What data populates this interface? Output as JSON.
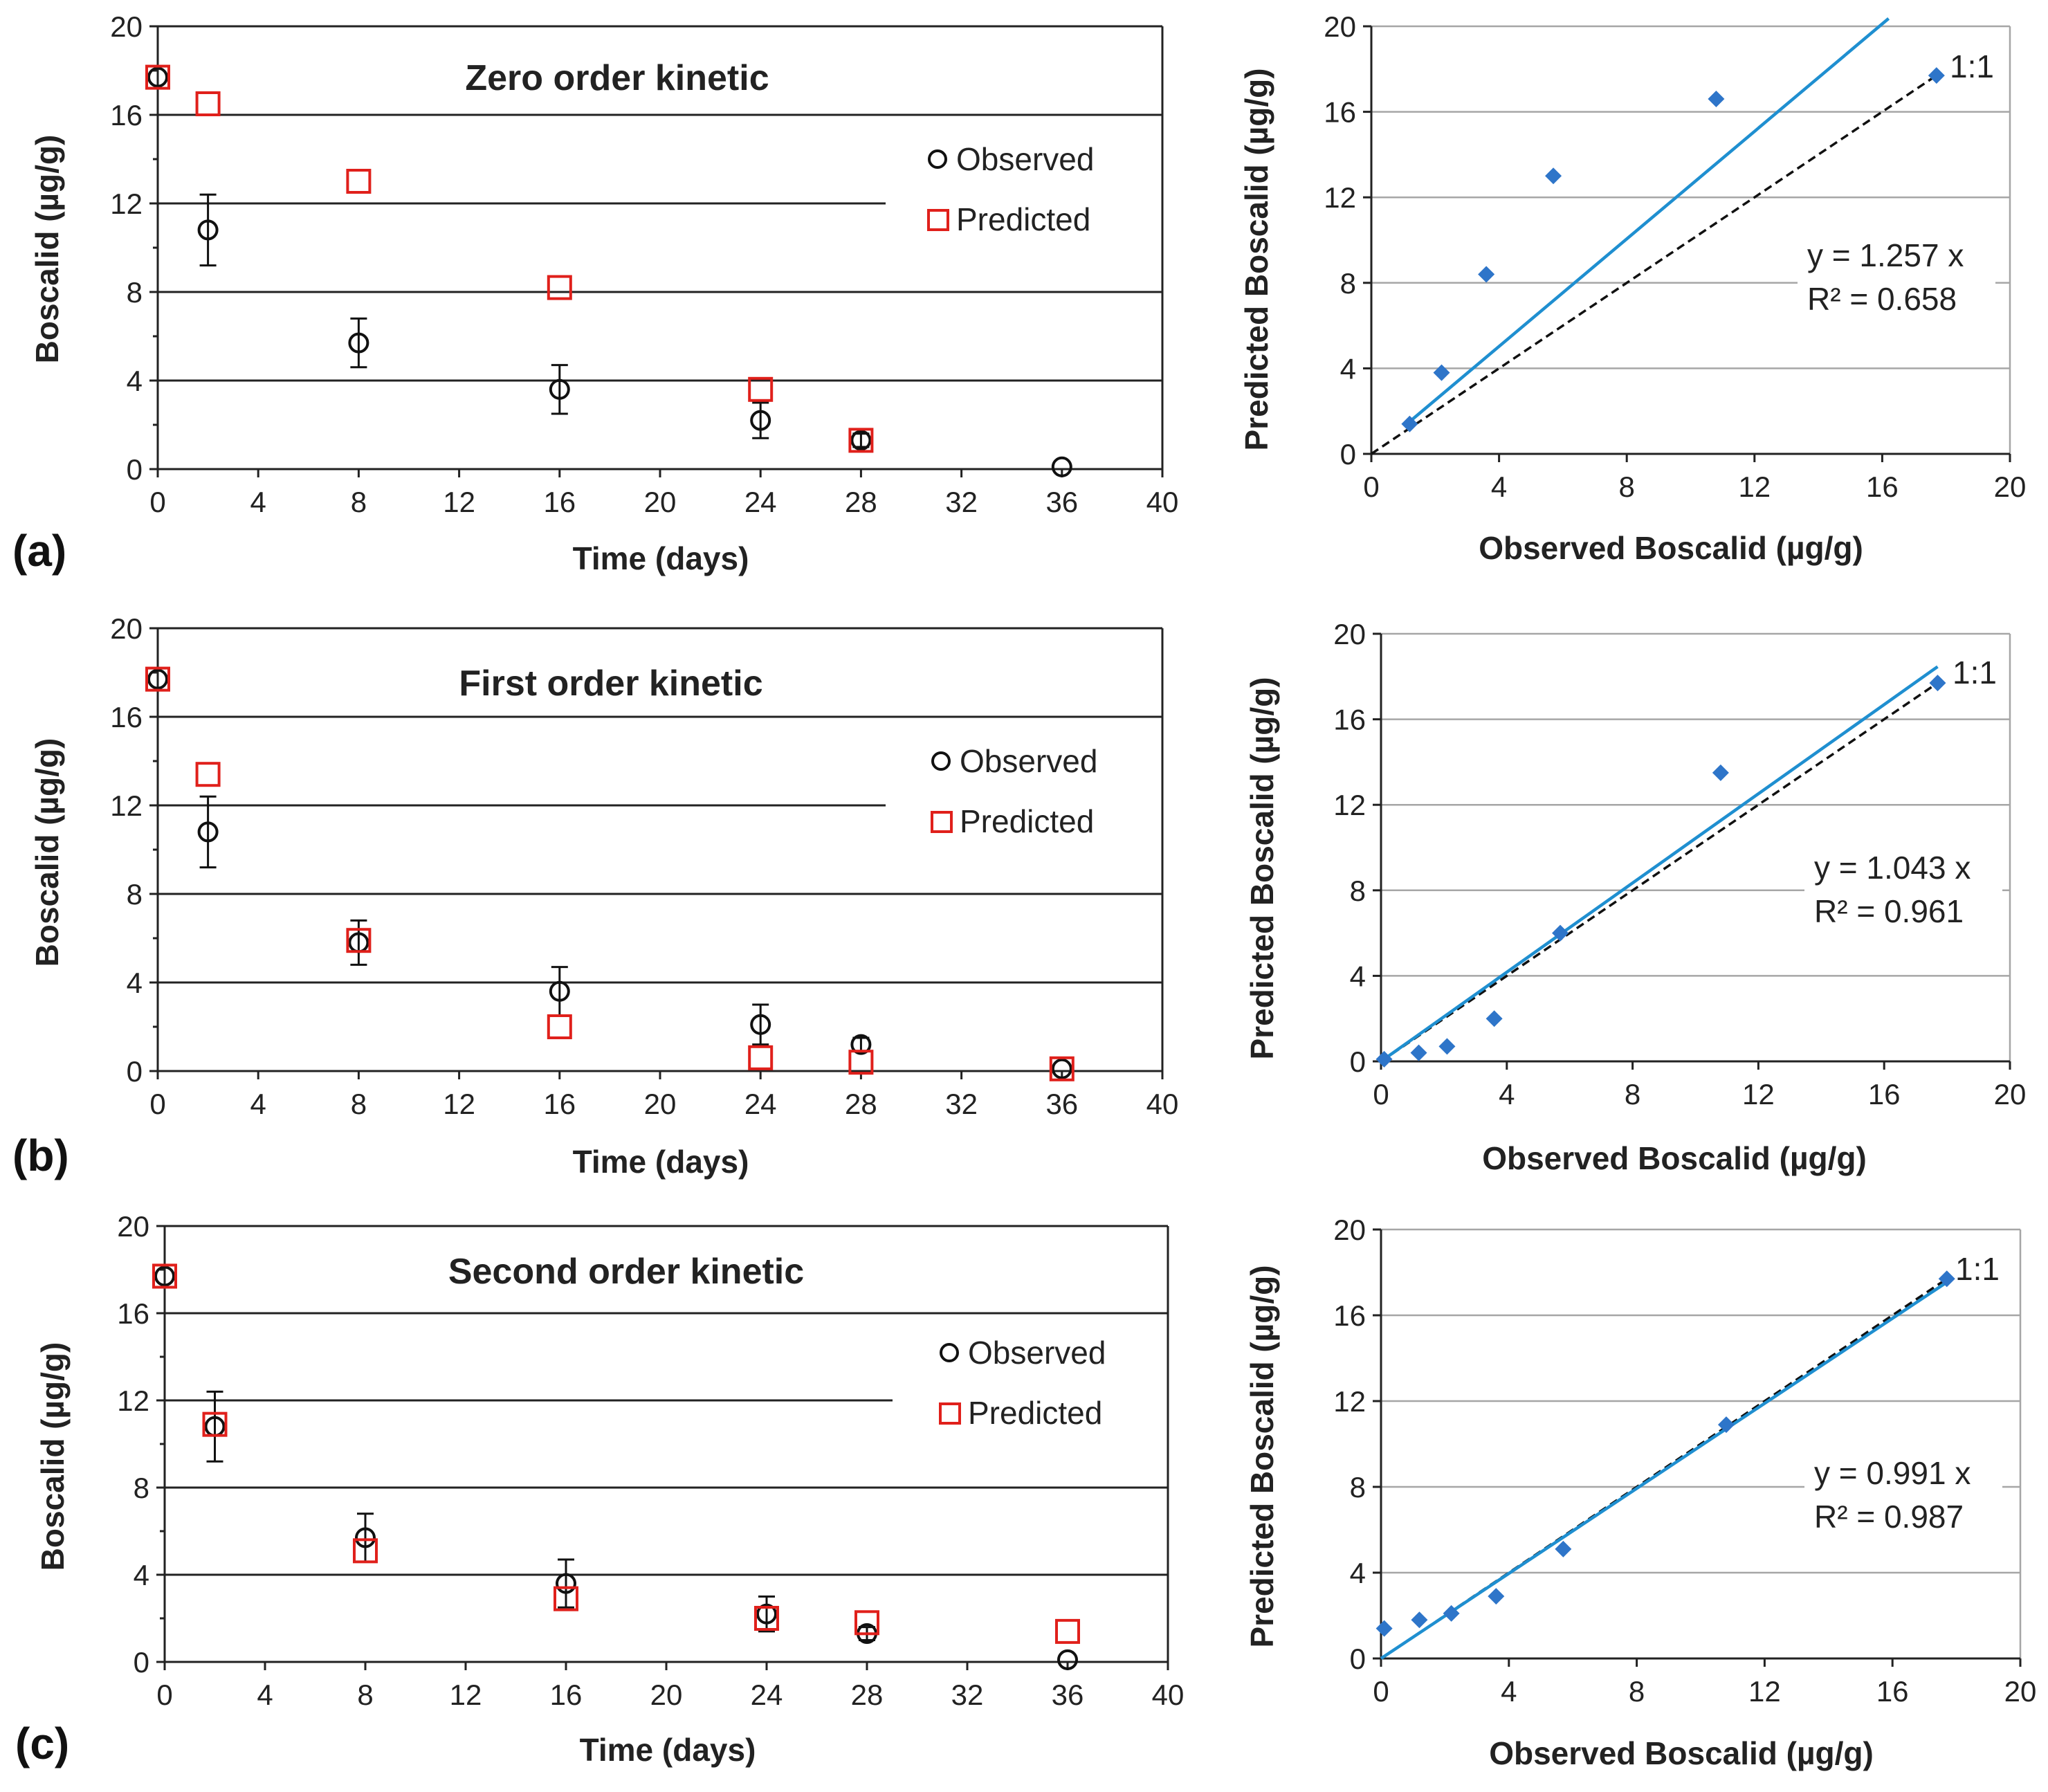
{
  "panels": [
    {
      "label": "(a)",
      "kinetic": {
        "title": "Zero order kinetic",
        "xlabel": "Time (days)",
        "ylabel": "Boscalid (µg/g)",
        "legend_observed": "Observed",
        "legend_predicted": "Predicted"
      },
      "scatter": {
        "xlabel": "Observed Boscalid (µg/g)",
        "ylabel": "Predicted Boscalid  (µg/g)",
        "equation": "y = 1.257 x",
        "r2": "R² = 0.658",
        "one_to_one": "1:1"
      }
    },
    {
      "label": "(b)",
      "kinetic": {
        "title": "First order kinetic",
        "xlabel": "Time (days)",
        "ylabel": "Boscalid (µg/g)",
        "legend_observed": "Observed",
        "legend_predicted": "Predicted"
      },
      "scatter": {
        "xlabel": "Observed Boscalid  (µg/g)",
        "ylabel": "Predicted Boscalid (µg/g)",
        "equation": "y = 1.043 x",
        "r2": "R² = 0.961",
        "one_to_one": "1:1"
      }
    },
    {
      "label": "(c)",
      "kinetic": {
        "title": "Second order kinetic",
        "xlabel": "Time (days)",
        "ylabel": "Boscalid (µg/g)",
        "legend_observed": "Observed",
        "legend_predicted": "Predicted"
      },
      "scatter": {
        "xlabel": "Observed Boscalid (µg/g)",
        "ylabel": "Predicted Boscalid (µg/g)",
        "equation": "y = 0.991 x",
        "r2": "R² = 0.987",
        "one_to_one": "1:1"
      }
    }
  ],
  "chart_data": [
    {
      "type": "scatter",
      "id": "a-kinetic",
      "title": "Zero order kinetic",
      "xlabel": "Time (days)",
      "ylabel": "Boscalid (µg/g)",
      "xlim": [
        0,
        40
      ],
      "ylim": [
        0,
        20
      ],
      "xticks": [
        0,
        4,
        8,
        12,
        16,
        20,
        24,
        28,
        32,
        36,
        40
      ],
      "yticks": [
        0,
        4,
        8,
        12,
        16,
        20
      ],
      "series": [
        {
          "name": "Observed",
          "x": [
            0,
            2,
            8,
            16,
            24,
            28,
            36
          ],
          "y": [
            17.7,
            10.8,
            5.7,
            3.6,
            2.2,
            1.3,
            0.1
          ],
          "err": [
            0,
            1.6,
            1.1,
            1.1,
            0.8,
            0.3,
            0
          ]
        },
        {
          "name": "Predicted",
          "x": [
            0,
            2,
            8,
            16,
            24,
            28
          ],
          "y": [
            17.7,
            16.5,
            13.0,
            8.2,
            3.6,
            1.3
          ]
        }
      ]
    },
    {
      "type": "scatter",
      "id": "a-fit",
      "xlabel": "Observed Boscalid (µg/g)",
      "ylabel": "Predicted Boscalid  (µg/g)",
      "xlim": [
        0,
        20
      ],
      "ylim": [
        0,
        20
      ],
      "xticks": [
        0,
        4,
        8,
        12,
        16,
        20
      ],
      "yticks": [
        0,
        4,
        8,
        12,
        16,
        20
      ],
      "series": [
        {
          "name": "Points",
          "x": [
            1.2,
            2.2,
            3.6,
            5.7,
            10.8,
            17.7
          ],
          "y": [
            1.4,
            3.8,
            8.4,
            13.0,
            16.6,
            17.7
          ]
        }
      ],
      "fit_slope": 1.257,
      "fit_xmax": 16.2,
      "ref_xmax": 17.7,
      "equation": "y = 1.257 x",
      "r2": "R² = 0.658"
    },
    {
      "type": "scatter",
      "id": "b-kinetic",
      "title": "First order kinetic",
      "xlabel": "Time (days)",
      "ylabel": "Boscalid (µg/g)",
      "xlim": [
        0,
        40
      ],
      "ylim": [
        0,
        20
      ],
      "xticks": [
        0,
        4,
        8,
        12,
        16,
        20,
        24,
        28,
        32,
        36,
        40
      ],
      "yticks": [
        0,
        4,
        8,
        12,
        16,
        20
      ],
      "series": [
        {
          "name": "Observed",
          "x": [
            0,
            2,
            8,
            16,
            24,
            28,
            36
          ],
          "y": [
            17.7,
            10.8,
            5.8,
            3.6,
            2.1,
            1.2,
            0.1
          ],
          "err": [
            0,
            1.6,
            1.0,
            1.1,
            0.9,
            0.3,
            0
          ]
        },
        {
          "name": "Predicted",
          "x": [
            0,
            2,
            8,
            16,
            24,
            28,
            36
          ],
          "y": [
            17.7,
            13.4,
            5.9,
            2.0,
            0.6,
            0.4,
            0.1
          ]
        }
      ]
    },
    {
      "type": "scatter",
      "id": "b-fit",
      "xlabel": "Observed Boscalid  (µg/g)",
      "ylabel": "Predicted Boscalid (µg/g)",
      "xlim": [
        0,
        20
      ],
      "ylim": [
        0,
        20
      ],
      "xticks": [
        0,
        4,
        8,
        12,
        16,
        20
      ],
      "yticks": [
        0,
        4,
        8,
        12,
        16,
        20
      ],
      "series": [
        {
          "name": "Points",
          "x": [
            0.1,
            1.2,
            2.1,
            3.6,
            5.7,
            10.8,
            17.7
          ],
          "y": [
            0.1,
            0.4,
            0.7,
            2.0,
            6.0,
            13.5,
            17.7
          ]
        }
      ],
      "fit_slope": 1.043,
      "fit_xmax": 17.7,
      "ref_xmax": 17.7,
      "equation": "y = 1.043 x",
      "r2": "R² = 0.961"
    },
    {
      "type": "scatter",
      "id": "c-kinetic",
      "title": "Second order kinetic",
      "xlabel": "Time (days)",
      "ylabel": "Boscalid (µg/g)",
      "xlim": [
        0,
        40
      ],
      "ylim": [
        0,
        20
      ],
      "xticks": [
        0,
        4,
        8,
        12,
        16,
        20,
        24,
        28,
        32,
        36,
        40
      ],
      "yticks": [
        0,
        4,
        8,
        12,
        16,
        20
      ],
      "series": [
        {
          "name": "Observed",
          "x": [
            0,
            2,
            8,
            16,
            24,
            28,
            36
          ],
          "y": [
            17.7,
            10.8,
            5.7,
            3.6,
            2.2,
            1.3,
            0.1
          ],
          "err": [
            0,
            1.6,
            1.1,
            1.1,
            0.8,
            0.3,
            0
          ]
        },
        {
          "name": "Predicted",
          "x": [
            0,
            2,
            8,
            16,
            24,
            28,
            36
          ],
          "y": [
            17.7,
            10.9,
            5.1,
            2.9,
            2.0,
            1.8,
            1.4
          ]
        }
      ]
    },
    {
      "type": "scatter",
      "id": "c-fit",
      "xlabel": "Observed Boscalid (µg/g)",
      "ylabel": "Predicted Boscalid (µg/g)",
      "xlim": [
        0,
        20
      ],
      "ylim": [
        0,
        20
      ],
      "xticks": [
        0,
        4,
        8,
        12,
        16,
        20
      ],
      "yticks": [
        0,
        4,
        8,
        12,
        16,
        20
      ],
      "series": [
        {
          "name": "Points",
          "x": [
            0.1,
            1.2,
            2.2,
            3.6,
            5.7,
            10.8,
            17.7
          ],
          "y": [
            1.4,
            1.8,
            2.1,
            2.9,
            5.1,
            10.9,
            17.7
          ]
        }
      ],
      "fit_slope": 0.991,
      "fit_xmax": 17.7,
      "ref_xmax": 17.7,
      "equation": "y = 0.991 x",
      "r2": "R² = 0.987"
    }
  ]
}
